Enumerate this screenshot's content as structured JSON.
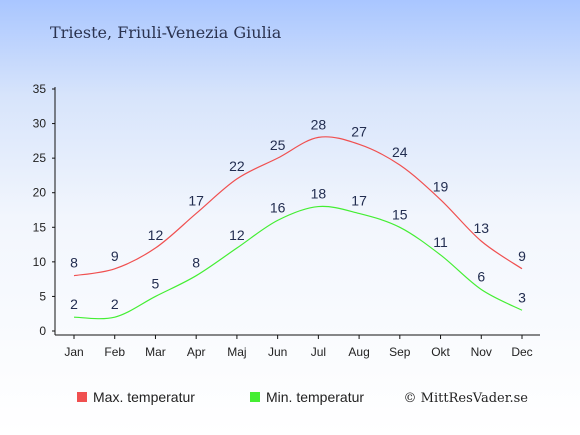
{
  "chart_data": {
    "type": "line",
    "title": "Trieste, Friuli-Venezia Giulia",
    "categories": [
      "Jan",
      "Feb",
      "Mar",
      "Apr",
      "Maj",
      "Jun",
      "Jul",
      "Aug",
      "Sep",
      "Okt",
      "Nov",
      "Dec"
    ],
    "series": [
      {
        "name": "Max. temperatur",
        "color": "#f05050",
        "values": [
          8,
          9,
          12,
          17,
          22,
          25,
          28,
          27,
          24,
          19,
          13,
          9
        ]
      },
      {
        "name": "Min. temperatur",
        "color": "#44ee33",
        "values": [
          2,
          2,
          5,
          8,
          12,
          16,
          18,
          17,
          15,
          11,
          6,
          3
        ]
      }
    ],
    "ylim": [
      0,
      35
    ],
    "yticks": [
      0,
      5,
      10,
      15,
      20,
      25,
      30,
      35
    ],
    "xlabel": "",
    "ylabel": "",
    "grid": false,
    "legend": "bottom-left"
  },
  "credit": "© MittResVader.se"
}
